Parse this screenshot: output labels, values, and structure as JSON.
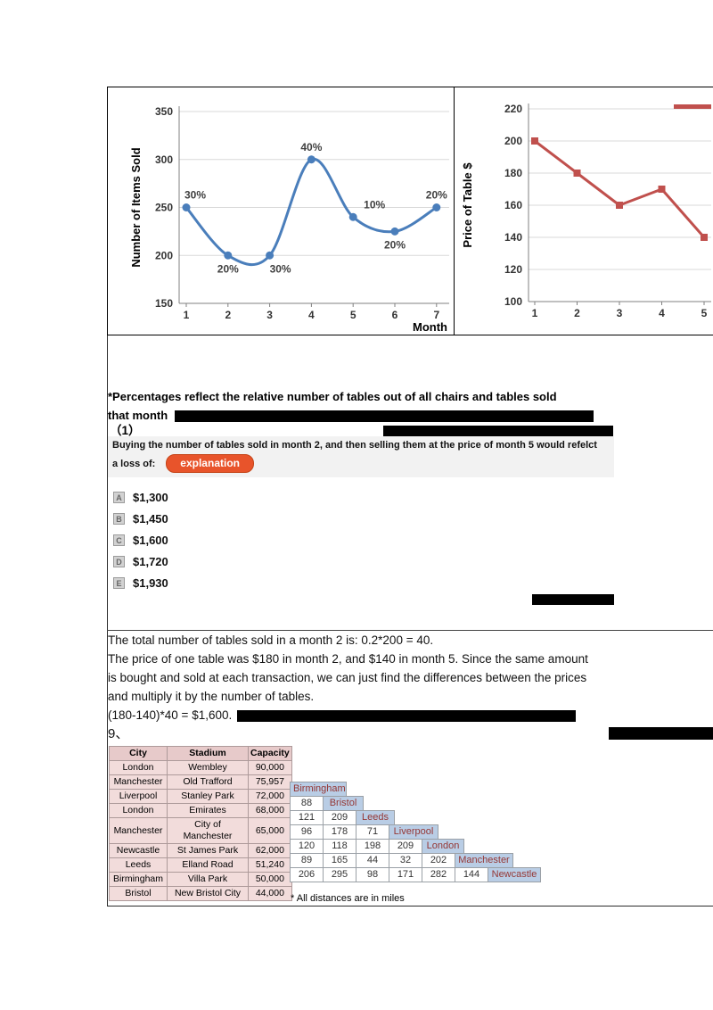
{
  "note": {
    "line1": "*Percentages reflect the relative number of tables out of all chairs and tables sold",
    "line2": "that month"
  },
  "question": {
    "number": "（1）",
    "line1": "Buying the number of tables sold in month 2, and then selling them at the price of month 5 would refelct",
    "line2": "a loss of:",
    "explanation_button": "explanation",
    "options": [
      {
        "letter": "A",
        "text": "$1,300"
      },
      {
        "letter": "B",
        "text": "$1,450"
      },
      {
        "letter": "C",
        "text": "$1,600"
      },
      {
        "letter": "D",
        "text": "$1,720"
      },
      {
        "letter": "E",
        "text": "$1,930"
      }
    ]
  },
  "explanation": {
    "lines": [
      "The total number of tables sold in a month 2 is: 0.2*200 = 40.",
      "The price of one table was $180 in month 2, and $140 in month 5. Since the same amount",
      "is bought and sold at each transaction, we can just find the differences between the prices",
      "and multiply it by the number of tables.",
      "(180-140)*40 = $1,600."
    ],
    "next_question_number": "9、"
  },
  "stadium_table": {
    "headers": [
      "City",
      "Stadium",
      "Capacity"
    ],
    "rows": [
      [
        "London",
        "Wembley",
        "90,000"
      ],
      [
        "Manchester",
        "Old Trafford",
        "75,957"
      ],
      [
        "Liverpool",
        "Stanley Park",
        "72,000"
      ],
      [
        "London",
        "Emirates",
        "68,000"
      ],
      [
        "Manchester",
        "City of Manchester",
        "65,000"
      ],
      [
        "Newcastle",
        "St James Park",
        "62,000"
      ],
      [
        "Leeds",
        "Elland Road",
        "51,240"
      ],
      [
        "Birmingham",
        "Villa Park",
        "50,000"
      ],
      [
        "Bristol",
        "New Bristol City",
        "44,000"
      ]
    ]
  },
  "distance_matrix": {
    "cities": [
      "Birmingham",
      "Bristol",
      "Leeds",
      "Liverpool",
      "London",
      "Manchester",
      "Newcastle"
    ],
    "rows": [
      [],
      [
        88
      ],
      [
        121,
        209
      ],
      [
        96,
        178,
        71
      ],
      [
        120,
        118,
        198,
        209
      ],
      [
        89,
        165,
        44,
        32,
        202
      ],
      [
        206,
        295,
        98,
        171,
        282,
        144
      ]
    ],
    "footnote": "* All distances are in miles"
  },
  "chart_data": [
    {
      "type": "line",
      "title": "",
      "ylabel": "Number of Items Sold",
      "xlabel": "Month",
      "x": [
        1,
        2,
        3,
        4,
        5,
        6,
        7
      ],
      "series": [
        {
          "name": "Items Sold",
          "values": [
            250,
            200,
            200,
            300,
            240,
            225,
            250
          ]
        }
      ],
      "point_labels": [
        {
          "text": "30%",
          "pos": "above"
        },
        {
          "text": "20%",
          "pos": "below"
        },
        {
          "text": "30%",
          "pos": "below"
        },
        {
          "text": "40%",
          "pos": "above"
        },
        {
          "text": "10%",
          "pos": "above"
        },
        {
          "text": "20%",
          "pos": "below"
        },
        {
          "text": "20%",
          "pos": "above"
        }
      ],
      "ylim": [
        150,
        350
      ],
      "yticks": [
        150,
        200,
        250,
        300,
        350
      ],
      "color": "#4a7ebb",
      "smooth": true,
      "marker": "circle",
      "grid": true,
      "legend": "none"
    },
    {
      "type": "line",
      "title": "",
      "ylabel": "Price of Table $",
      "xlabel": "",
      "x": [
        1,
        2,
        3,
        4,
        5
      ],
      "series": [
        {
          "name": "Price of Table",
          "values": [
            200,
            180,
            160,
            170,
            140
          ]
        }
      ],
      "ylim": [
        100,
        220
      ],
      "yticks": [
        100,
        120,
        140,
        160,
        180,
        200,
        220
      ],
      "color": "#c0504d",
      "smooth": false,
      "marker": "square",
      "grid": true,
      "legend": "none",
      "clipped_right": true
    }
  ],
  "colors": {
    "items_line": "#4a7ebb",
    "price_line": "#c0504d",
    "explanation_button": "#e8542b",
    "stadium_fill": "#f2dcdb",
    "matrix_city_fill": "#b9cde5",
    "matrix_city_text": "#953735",
    "redaction": "#000000"
  }
}
